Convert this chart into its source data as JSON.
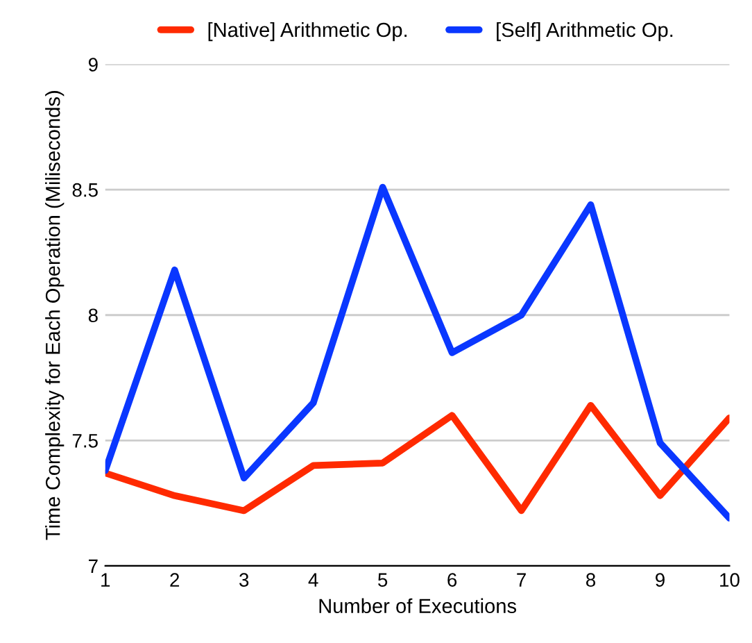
{
  "chart_data": {
    "type": "line",
    "xlabel": "Number of Executions",
    "ylabel": "Time Complexity for Each Operation (Miliseconds)",
    "x": [
      1,
      2,
      3,
      4,
      5,
      6,
      7,
      8,
      9,
      10
    ],
    "series": [
      {
        "name": "[Native] Arithmetic Op.",
        "color": "#ff2a00",
        "values": [
          7.37,
          7.28,
          7.22,
          7.4,
          7.41,
          7.6,
          7.22,
          7.64,
          7.28,
          7.59
        ]
      },
      {
        "name": "[Self] Arithmetic Op.",
        "color": "#0a37ff",
        "values": [
          7.38,
          8.18,
          7.35,
          7.65,
          8.51,
          7.85,
          8.0,
          8.44,
          7.49,
          7.19
        ]
      }
    ],
    "xlim": [
      1,
      10
    ],
    "ylim": [
      7,
      9
    ],
    "xticks": [
      1,
      2,
      3,
      4,
      5,
      6,
      7,
      8,
      9,
      10
    ],
    "yticks": [
      7,
      7.5,
      8,
      8.5,
      9
    ],
    "grid": "y",
    "legend": "top",
    "marker": "none",
    "line_style": "solid"
  }
}
